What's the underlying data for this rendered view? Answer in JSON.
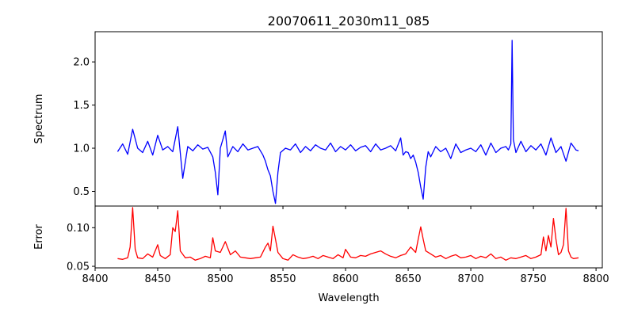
{
  "figure": {
    "title": "20070611_2030m11_085",
    "xlabel": "Wavelength"
  },
  "chart_data": [
    {
      "type": "line",
      "name": "spectrum-panel",
      "title": "20070611_2030m11_085",
      "xlabel": "",
      "ylabel": "Spectrum",
      "xlim": [
        8400,
        8805
      ],
      "ylim": [
        0.33,
        2.35
      ],
      "xticks": [
        8400,
        8450,
        8500,
        8550,
        8600,
        8650,
        8700,
        8750,
        8800
      ],
      "yticks": [
        0.5,
        1.0,
        1.5,
        2.0
      ],
      "ytick_labels": [
        "0.5",
        "1.0",
        "1.5",
        "2.0"
      ],
      "grid": false,
      "color": "#0000ff",
      "x": [
        8418,
        8422,
        8426,
        8430,
        8434,
        8438,
        8442,
        8446,
        8450,
        8454,
        8458,
        8462,
        8466,
        8470,
        8474,
        8478,
        8482,
        8486,
        8490,
        8494,
        8496,
        8498,
        8500,
        8502,
        8504,
        8506,
        8510,
        8514,
        8518,
        8522,
        8526,
        8530,
        8534,
        8536,
        8538,
        8540,
        8542,
        8544,
        8546,
        8548,
        8552,
        8556,
        8560,
        8564,
        8568,
        8572,
        8576,
        8580,
        8584,
        8588,
        8592,
        8596,
        8600,
        8604,
        8608,
        8612,
        8616,
        8620,
        8624,
        8628,
        8632,
        8636,
        8640,
        8644,
        8646,
        8648,
        8650,
        8652,
        8654,
        8656,
        8658,
        8660,
        8662,
        8664,
        8666,
        8668,
        8672,
        8676,
        8680,
        8684,
        8688,
        8692,
        8696,
        8700,
        8704,
        8708,
        8712,
        8716,
        8720,
        8724,
        8728,
        8730,
        8732,
        8733,
        8734,
        8736,
        8740,
        8744,
        8748,
        8752,
        8756,
        8760,
        8764,
        8768,
        8772,
        8776,
        8780,
        8784,
        8786
      ],
      "y": [
        0.96,
        1.05,
        0.93,
        1.22,
        1.0,
        0.95,
        1.08,
        0.92,
        1.15,
        0.98,
        1.02,
        0.96,
        1.25,
        0.65,
        1.02,
        0.97,
        1.04,
        0.99,
        1.01,
        0.9,
        0.72,
        0.46,
        1.0,
        1.1,
        1.2,
        0.9,
        1.02,
        0.96,
        1.05,
        0.98,
        1.0,
        1.02,
        0.92,
        0.85,
        0.75,
        0.68,
        0.5,
        0.36,
        0.72,
        0.95,
        1.0,
        0.98,
        1.05,
        0.95,
        1.02,
        0.97,
        1.04,
        1.0,
        0.98,
        1.06,
        0.96,
        1.02,
        0.98,
        1.04,
        0.97,
        1.01,
        1.03,
        0.96,
        1.05,
        0.98,
        1.0,
        1.03,
        0.97,
        1.12,
        0.92,
        0.96,
        0.95,
        0.88,
        0.92,
        0.84,
        0.72,
        0.55,
        0.41,
        0.78,
        0.96,
        0.9,
        1.02,
        0.96,
        1.0,
        0.88,
        1.05,
        0.95,
        0.98,
        1.0,
        0.96,
        1.04,
        0.92,
        1.06,
        0.95,
        1.0,
        1.02,
        0.98,
        1.05,
        2.25,
        1.1,
        0.95,
        1.08,
        0.96,
        1.03,
        0.98,
        1.05,
        0.92,
        1.12,
        0.95,
        1.02,
        0.85,
        1.06,
        0.98,
        0.97
      ]
    },
    {
      "type": "line",
      "name": "error-panel",
      "title": "",
      "xlabel": "Wavelength",
      "ylabel": "Error",
      "xlim": [
        8400,
        8805
      ],
      "ylim": [
        0.048,
        0.128
      ],
      "xticks": [
        8400,
        8450,
        8500,
        8550,
        8600,
        8650,
        8700,
        8750,
        8800
      ],
      "xtick_labels": [
        "8400",
        "8450",
        "8500",
        "8550",
        "8600",
        "8650",
        "8700",
        "8750",
        "8800"
      ],
      "yticks": [
        0.05,
        0.1
      ],
      "ytick_labels": [
        "0.05",
        "0.10"
      ],
      "grid": false,
      "color": "#ff0000",
      "x": [
        8418,
        8422,
        8426,
        8428,
        8430,
        8432,
        8434,
        8438,
        8442,
        8446,
        8450,
        8452,
        8456,
        8460,
        8462,
        8464,
        8466,
        8468,
        8472,
        8476,
        8480,
        8484,
        8488,
        8492,
        8494,
        8496,
        8500,
        8504,
        8508,
        8512,
        8516,
        8520,
        8524,
        8528,
        8532,
        8536,
        8538,
        8540,
        8542,
        8544,
        8546,
        8550,
        8554,
        8558,
        8562,
        8566,
        8570,
        8574,
        8578,
        8582,
        8586,
        8590,
        8594,
        8598,
        8600,
        8604,
        8608,
        8612,
        8616,
        8620,
        8624,
        8628,
        8632,
        8636,
        8640,
        8644,
        8648,
        8652,
        8656,
        8658,
        8660,
        8662,
        8664,
        8668,
        8672,
        8676,
        8680,
        8684,
        8688,
        8692,
        8696,
        8700,
        8704,
        8708,
        8712,
        8716,
        8720,
        8724,
        8728,
        8732,
        8736,
        8740,
        8744,
        8748,
        8752,
        8756,
        8758,
        8760,
        8762,
        8764,
        8766,
        8768,
        8770,
        8772,
        8774,
        8776,
        8778,
        8780,
        8782,
        8786
      ],
      "y": [
        0.06,
        0.059,
        0.061,
        0.075,
        0.126,
        0.072,
        0.061,
        0.06,
        0.066,
        0.062,
        0.078,
        0.064,
        0.06,
        0.065,
        0.1,
        0.095,
        0.122,
        0.07,
        0.061,
        0.062,
        0.058,
        0.06,
        0.063,
        0.061,
        0.087,
        0.07,
        0.068,
        0.082,
        0.065,
        0.07,
        0.062,
        0.061,
        0.06,
        0.061,
        0.062,
        0.075,
        0.08,
        0.07,
        0.102,
        0.085,
        0.068,
        0.06,
        0.058,
        0.065,
        0.062,
        0.06,
        0.061,
        0.063,
        0.06,
        0.064,
        0.062,
        0.06,
        0.065,
        0.061,
        0.072,
        0.062,
        0.061,
        0.064,
        0.063,
        0.066,
        0.068,
        0.07,
        0.066,
        0.063,
        0.061,
        0.064,
        0.066,
        0.075,
        0.068,
        0.085,
        0.101,
        0.085,
        0.07,
        0.066,
        0.062,
        0.064,
        0.06,
        0.063,
        0.065,
        0.061,
        0.062,
        0.064,
        0.06,
        0.063,
        0.061,
        0.066,
        0.06,
        0.062,
        0.058,
        0.061,
        0.06,
        0.062,
        0.064,
        0.06,
        0.062,
        0.065,
        0.088,
        0.07,
        0.09,
        0.075,
        0.112,
        0.085,
        0.065,
        0.068,
        0.078,
        0.125,
        0.07,
        0.062,
        0.06,
        0.061
      ]
    }
  ]
}
